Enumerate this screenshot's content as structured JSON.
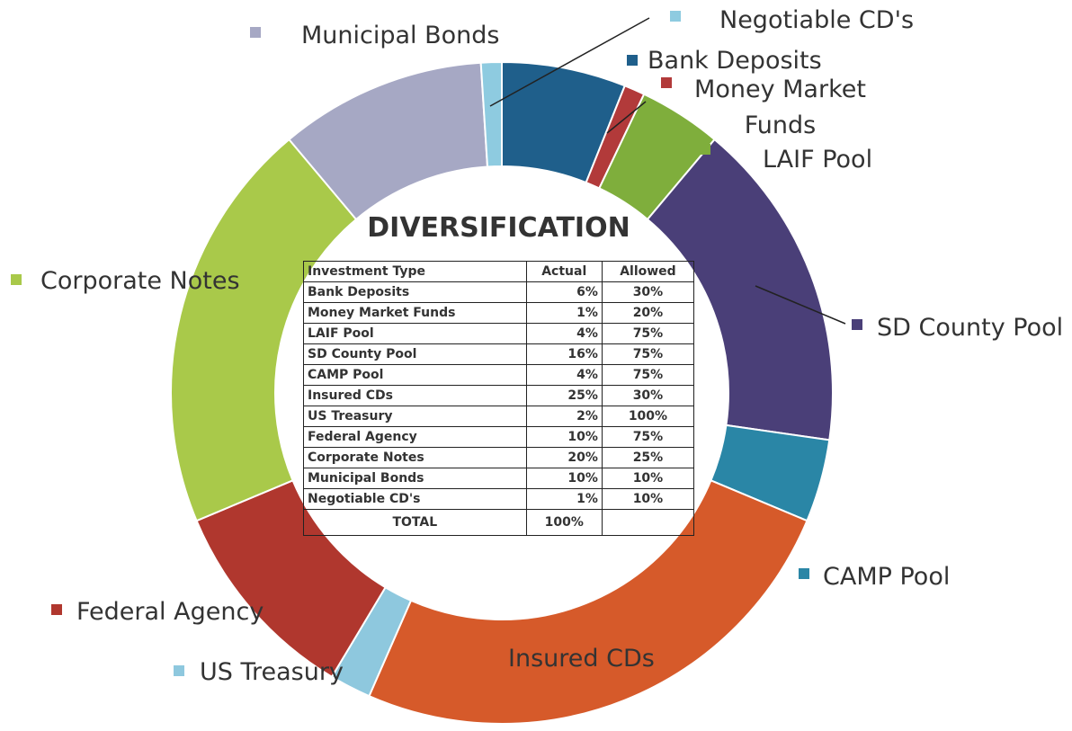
{
  "chart_data": {
    "type": "donut",
    "title": "DIVERSIFICATION",
    "categories": [
      "Bank Deposits",
      "Money Market Funds",
      "LAIF Pool",
      "SD County Pool",
      "CAMP Pool",
      "Insured CDs",
      "US Treasury",
      "Federal Agency",
      "Corporate Notes",
      "Municipal Bonds",
      "Negotiable CD's"
    ],
    "values": [
      6,
      1,
      4,
      16,
      4,
      25,
      2,
      10,
      20,
      10,
      1
    ],
    "value_labels": [
      "6%",
      "1%",
      "4%",
      "16%",
      "4%",
      "25%",
      "2%",
      "10%",
      "20%",
      "10%",
      "1%"
    ],
    "colors": [
      "#1f5f8b",
      "#b23a3a",
      "#7fae3c",
      "#4a3f78",
      "#2a86a6",
      "#d65a2a",
      "#8ec8de",
      "#b0372e",
      "#a9c94a",
      "#a6a8c4",
      "#8ecbe0"
    ],
    "table": {
      "columns": [
        "Investment Type",
        "Actual",
        "Allowed"
      ],
      "allowed": [
        "30%",
        "20%",
        "75%",
        "75%",
        "75%",
        "30%",
        "100%",
        "75%",
        "25%",
        "10%",
        "10%"
      ],
      "total_label": "TOTAL",
      "total": "100%"
    }
  }
}
